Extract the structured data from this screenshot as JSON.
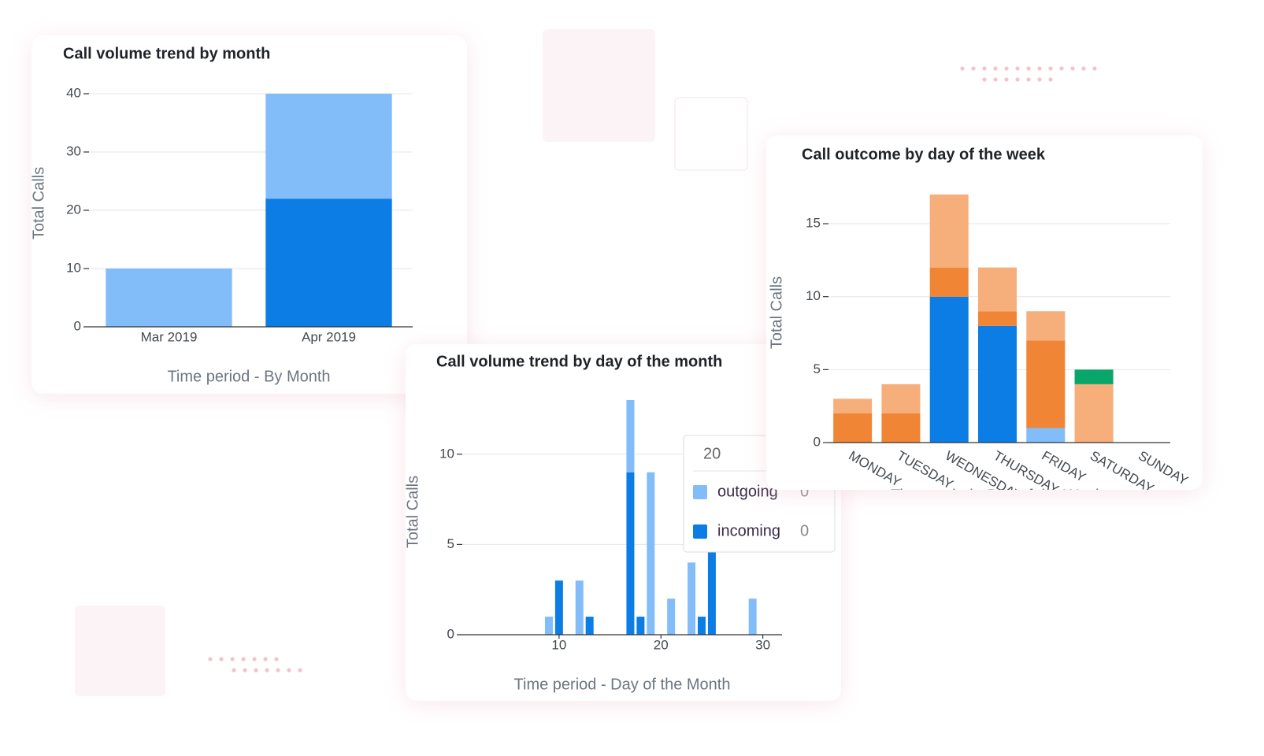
{
  "chart_data": [
    {
      "type": "bar",
      "stacked": true,
      "title": "Call volume trend by month",
      "y_label": "Total Calls",
      "x_label": "Time period - By Month",
      "categories": [
        "Mar 2019",
        "Apr 2019"
      ],
      "series": [
        {
          "color": "#0d7de6",
          "values": [
            0,
            22
          ]
        },
        {
          "color": "#82bdfa",
          "values": [
            10,
            18
          ]
        }
      ],
      "ylim": [
        0,
        40
      ],
      "yticks": [
        0,
        10,
        20,
        30,
        40
      ],
      "grid": true
    },
    {
      "type": "bar",
      "stacked": true,
      "title": "Call volume trend by day of the month",
      "y_label": "Total Calls",
      "x_label": "Time period - Day of the Month",
      "x": [
        9,
        10,
        12,
        13,
        17,
        18,
        19,
        21,
        23,
        24,
        25,
        29
      ],
      "series": [
        {
          "name": "incoming",
          "color": "#0d7de6",
          "values": [
            0,
            3,
            0,
            1,
            9,
            1,
            0,
            0,
            0,
            1,
            5,
            0
          ]
        },
        {
          "name": "outgoing",
          "color": "#82bdfa",
          "values": [
            1,
            0,
            3,
            0,
            4,
            0,
            9,
            2,
            4,
            0,
            0,
            2
          ]
        }
      ],
      "xlim": [
        0.5,
        31.5
      ],
      "xticks": [
        10,
        20,
        30
      ],
      "ylim": [
        0,
        13
      ],
      "yticks": [
        0,
        5,
        10
      ],
      "grid": true,
      "tooltip": {
        "x": 20,
        "items": [
          {
            "name": "outgoing",
            "color": "#82bdfa",
            "value": 0
          },
          {
            "name": "incoming",
            "color": "#0d7de6",
            "value": 0
          }
        ]
      }
    },
    {
      "type": "bar",
      "stacked": true,
      "title": "Call outcome by day of the week",
      "y_label": "Total Calls",
      "x_label": "Time period - Day of the Week",
      "categories": [
        "MONDAY",
        "TUESDAY",
        "WEDNESDAY",
        "THURSDAY",
        "FRIDAY",
        "SATURDAY",
        "SUNDAY"
      ],
      "series": [
        {
          "color": "#0d7de6",
          "values": [
            0,
            0,
            10,
            8,
            0,
            0,
            0
          ]
        },
        {
          "color": "#82bdfa",
          "values": [
            0,
            0,
            0,
            0,
            1,
            0,
            0
          ]
        },
        {
          "color": "#ef8535",
          "values": [
            2,
            2,
            2,
            1,
            6,
            0,
            0
          ]
        },
        {
          "color": "#f6ae7b",
          "values": [
            1,
            2,
            5,
            3,
            2,
            4,
            0
          ]
        },
        {
          "color": "#0aa56b",
          "values": [
            0,
            0,
            0,
            0,
            0,
            1,
            0
          ]
        }
      ],
      "ylim": [
        0,
        17
      ],
      "yticks": [
        0,
        5,
        10,
        15
      ],
      "grid": true,
      "rotate_labels": true
    }
  ]
}
